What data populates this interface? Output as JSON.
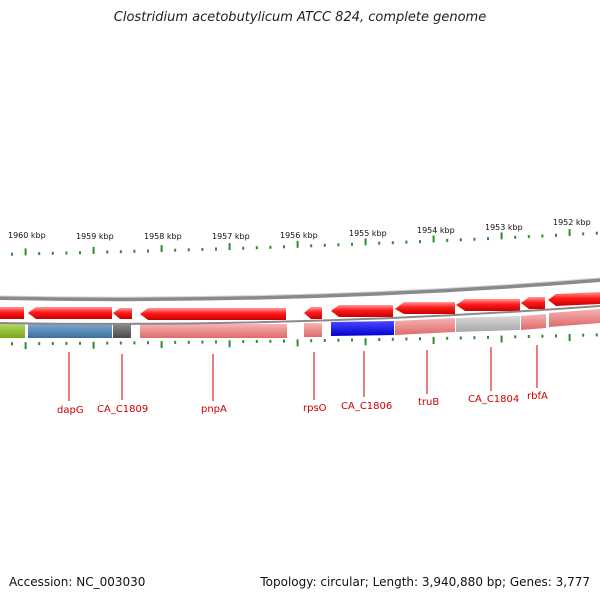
{
  "title": "Clostridium acetobutylicum ATCC 824, complete genome",
  "accession": "Accession: NC_003030",
  "summary": "Topology: circular; Length: 3,940,880 bp; Genes: 3,777",
  "ruler": {
    "labels": [
      "1960 kbp",
      "1959 kbp",
      "1958 kbp",
      "1957 kbp",
      "1956 kbp",
      "1955 kbp",
      "1954 kbp",
      "1953 kbp",
      "1952 kbp"
    ],
    "tick_color": "#2e8b2e"
  },
  "gene_labels": [
    "dapG",
    "CA_C1809",
    "pnpA",
    "rpsO",
    "CA_C1806",
    "truB",
    "CA_C1804",
    "rbfA"
  ],
  "colors": {
    "gene_arrow": "#ee0000",
    "backbone": "#8a8a8a",
    "label": "#cc0000"
  }
}
